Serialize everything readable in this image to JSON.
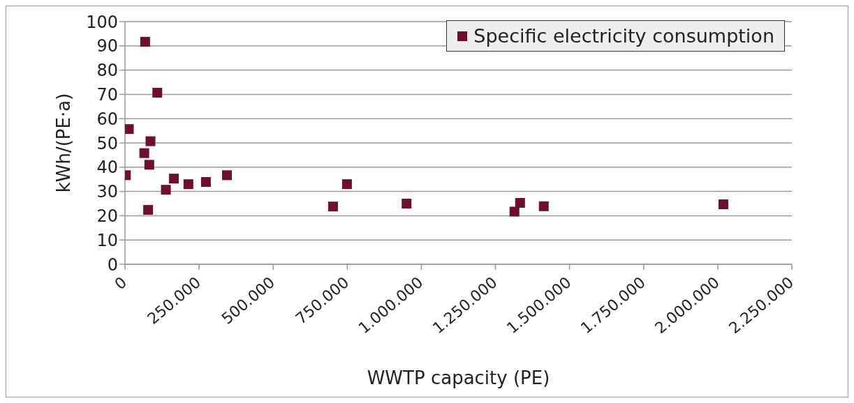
{
  "chart_data": {
    "type": "scatter",
    "xlabel": "WWTP capacity (PE)",
    "ylabel": "kWh/(PE·a)",
    "x": [
      68000,
      109000,
      13000,
      86000,
      65000,
      82000,
      3000,
      165000,
      138000,
      214000,
      273000,
      344000,
      78000,
      749000,
      702000,
      950000,
      1333000,
      1314000,
      1413000,
      2019000
    ],
    "series": [
      {
        "name": "Specific electricity consumption",
        "color": "#6e1029",
        "values": [
          91.7,
          70.7,
          55.7,
          50.7,
          45.8,
          41.0,
          36.7,
          35.3,
          30.7,
          33.0,
          33.9,
          36.7,
          22.4,
          33.0,
          23.8,
          25.0,
          25.3,
          21.7,
          23.9,
          24.7
        ]
      }
    ],
    "xlim": [
      0,
      2250000
    ],
    "xticks": [
      0,
      {
        "value": 250000,
        "label": "250.000"
      },
      {
        "value": 500000,
        "label": "500.000"
      },
      {
        "value": 750000,
        "label": "750.000"
      },
      {
        "value": 1000000,
        "label": "1.000.000"
      },
      {
        "value": 1250000,
        "label": "1.250.000"
      },
      {
        "value": 1500000,
        "label": "1.500.000"
      },
      {
        "value": 1750000,
        "label": "1.750.000"
      },
      {
        "value": 2000000,
        "label": "2.000.000"
      },
      {
        "value": 2250000,
        "label": "2.250.000"
      }
    ],
    "ylim": [
      0,
      100
    ],
    "yticks": [
      0,
      10,
      20,
      30,
      40,
      50,
      60,
      70,
      80,
      90,
      100
    ],
    "grid": "y",
    "legend": "top right",
    "marker": "square"
  }
}
